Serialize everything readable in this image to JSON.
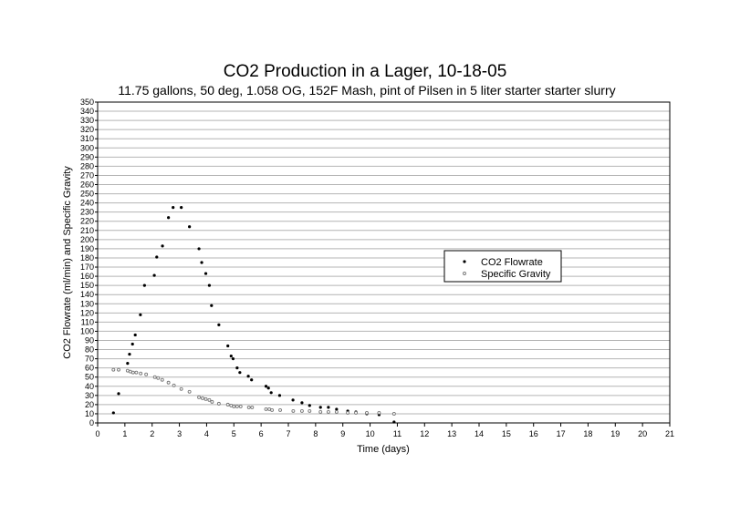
{
  "chart_data": {
    "type": "scatter",
    "title": "CO2 Production in a Lager, 10-18-05",
    "subtitle": "11.75 gallons, 50 deg, 1.058 OG, 152F Mash, pint of Pilsen in 5 liter starter starter slurry",
    "xlabel": "Time (days)",
    "ylabel": "CO2 Flowrate (ml/min) and Specific Gravity",
    "xlim": [
      0,
      21
    ],
    "ylim": [
      0,
      350
    ],
    "x_ticks": [
      0,
      1,
      2,
      3,
      4,
      5,
      6,
      7,
      8,
      9,
      10,
      11,
      12,
      13,
      14,
      15,
      16,
      17,
      18,
      19,
      20,
      21
    ],
    "y_ticks": [
      0,
      10,
      20,
      30,
      40,
      50,
      60,
      70,
      80,
      90,
      100,
      110,
      120,
      130,
      140,
      150,
      160,
      170,
      180,
      190,
      200,
      210,
      220,
      230,
      240,
      250,
      260,
      270,
      280,
      290,
      300,
      310,
      320,
      330,
      340,
      350
    ],
    "grid": "horizontal",
    "legend_position": "right",
    "series": [
      {
        "name": "CO2 Flowrate",
        "marker": "filled",
        "color": "#000000",
        "x": [
          0.58,
          0.77,
          1.1,
          1.17,
          1.28,
          1.38,
          1.57,
          1.72,
          2.08,
          2.17,
          2.38,
          2.6,
          2.77,
          3.07,
          3.37,
          3.72,
          3.82,
          3.97,
          4.1,
          4.18,
          4.45,
          4.78,
          4.9,
          4.97,
          5.12,
          5.22,
          5.53,
          5.65,
          6.18,
          6.27,
          6.37,
          6.68,
          7.17,
          7.5,
          7.78,
          8.18,
          8.47,
          8.77,
          9.18,
          9.48,
          9.88,
          10.33,
          10.88
        ],
        "y": [
          11,
          32,
          65,
          75,
          86,
          96,
          118,
          150,
          161,
          181,
          193,
          224,
          235,
          235,
          214,
          190,
          175,
          163,
          150,
          128,
          107,
          84,
          73,
          70,
          60,
          55,
          51,
          47,
          40,
          38,
          33,
          30,
          25,
          22,
          19,
          17,
          17,
          15,
          13,
          12,
          10,
          9,
          1
        ]
      },
      {
        "name": "Specific Gravity",
        "marker": "hollow",
        "color": "#777777",
        "x": [
          0.58,
          0.77,
          1.1,
          1.2,
          1.3,
          1.42,
          1.58,
          1.78,
          2.1,
          2.22,
          2.37,
          2.6,
          2.8,
          3.07,
          3.37,
          3.72,
          3.85,
          3.97,
          4.1,
          4.2,
          4.45,
          4.78,
          4.9,
          5.0,
          5.12,
          5.25,
          5.55,
          5.67,
          6.18,
          6.3,
          6.4,
          6.7,
          7.18,
          7.5,
          7.78,
          8.18,
          8.47,
          8.77,
          9.18,
          9.48,
          9.88,
          10.33,
          10.88
        ],
        "y": [
          58,
          58,
          57,
          56,
          55,
          55,
          54,
          53,
          50,
          49,
          47,
          44,
          41,
          37,
          34,
          28,
          27,
          26,
          25,
          23,
          21,
          20,
          19,
          18,
          18,
          18,
          17,
          17,
          15,
          15,
          14,
          14,
          13,
          13,
          13,
          12,
          12,
          12,
          11,
          11,
          11,
          11,
          10
        ]
      }
    ]
  }
}
